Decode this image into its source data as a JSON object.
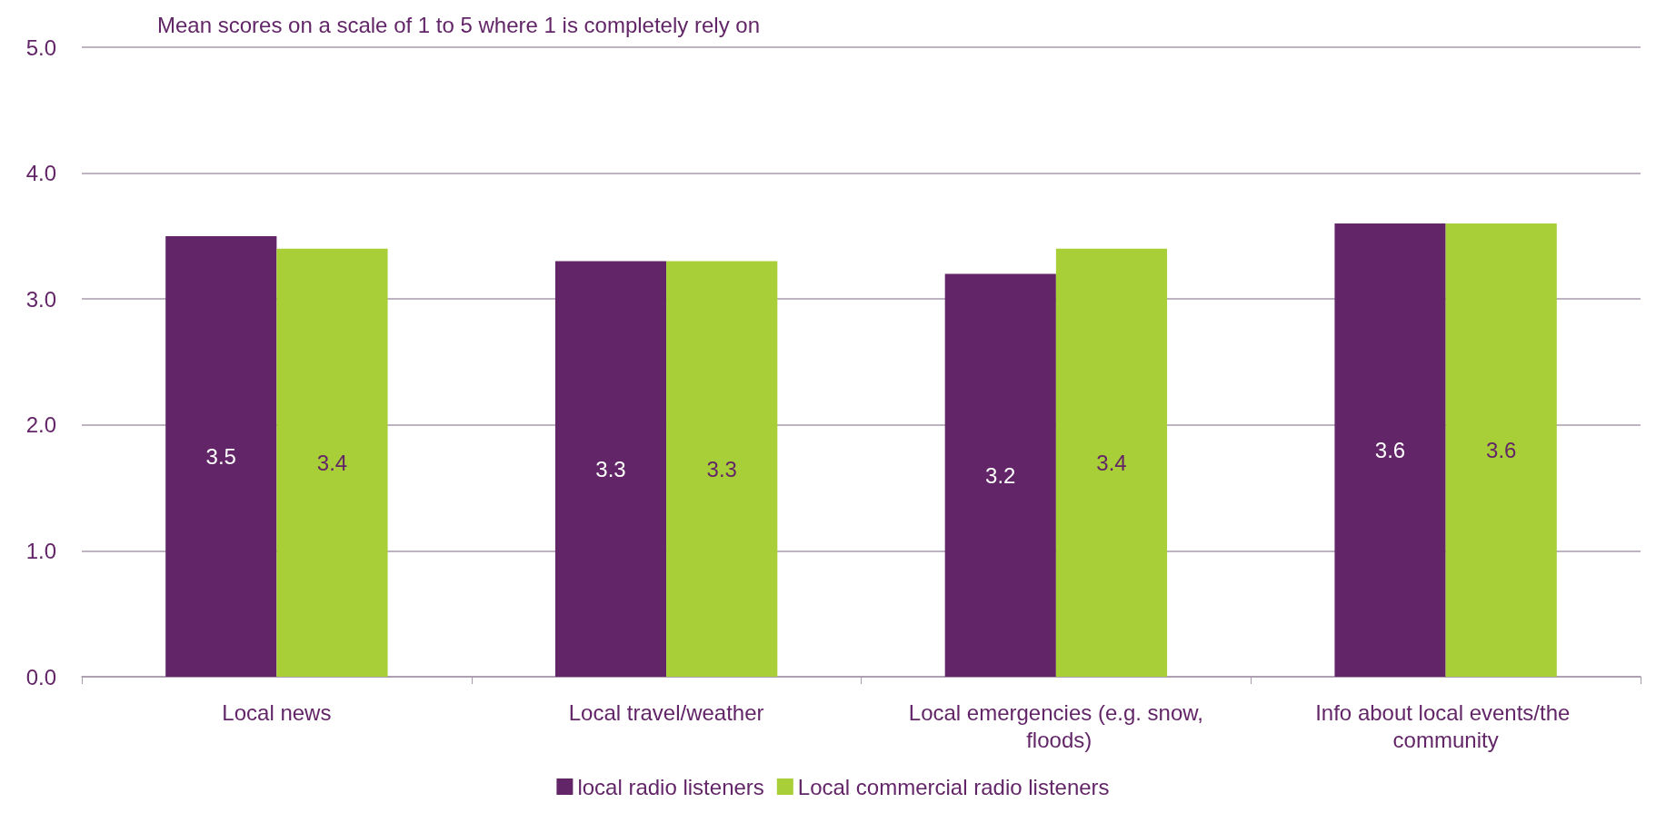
{
  "chart_data": {
    "type": "bar",
    "title": "Mean scores on a scale of 1 to 5 where 1 is completely rely on",
    "categories": [
      "Local news",
      "Local travel/weather",
      "Local emergencies (e.g. snow, floods)",
      "Info about local events/the community"
    ],
    "series": [
      {
        "name": "local radio listeners",
        "color": "#622567",
        "values": [
          3.5,
          3.3,
          3.2,
          3.6
        ]
      },
      {
        "name": "Local commercial radio listeners",
        "color": "#a9cf38",
        "values": [
          3.4,
          3.3,
          3.4,
          3.6
        ]
      }
    ],
    "ylim": [
      0,
      5
    ],
    "yticks": [
      {
        "value": 0,
        "label": "0.0"
      },
      {
        "value": 1,
        "label": "1.0"
      },
      {
        "value": 2,
        "label": "2.0"
      },
      {
        "value": 3,
        "label": "3.0"
      },
      {
        "value": 4,
        "label": "4.0"
      },
      {
        "value": 5,
        "label": "5.0"
      }
    ],
    "grid": "y",
    "legend": "bottom",
    "data_labels": true
  }
}
